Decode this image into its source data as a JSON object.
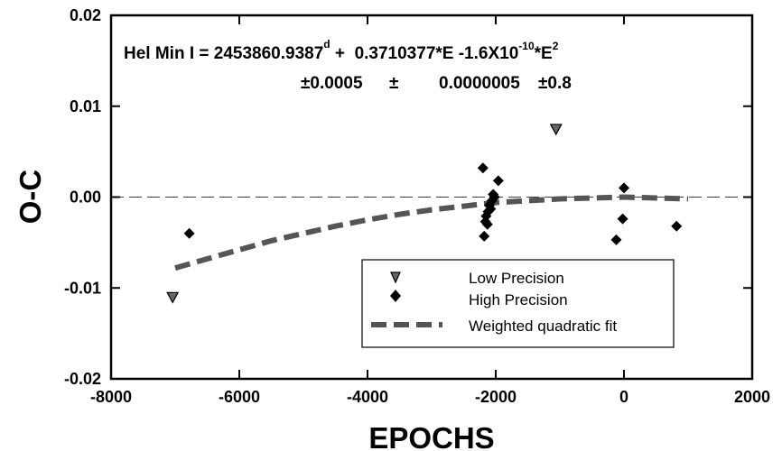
{
  "chart_data": {
    "type": "scatter",
    "xlabel": "EPOCHS",
    "ylabel": "O-C",
    "xlim": [
      -8000,
      2000
    ],
    "ylim": [
      -0.02,
      0.02
    ],
    "x_ticks": [
      -8000,
      -6000,
      -4000,
      -2000,
      0,
      2000
    ],
    "x_tick_labels": [
      "-8000",
      "-6000",
      "-4000",
      "-2000",
      "0",
      "2000"
    ],
    "y_ticks": [
      -0.02,
      -0.01,
      0.0,
      0.01,
      0.02
    ],
    "y_tick_labels": [
      "-0.02",
      "-0.01",
      "0.00",
      "0.01",
      "0.02"
    ],
    "grid": false,
    "reference_line_y": 0.0,
    "equation": {
      "line1": {
        "prefix": "Hel Min I = 2453860.9387",
        "sup1": "d",
        "middle1": " +  0.3710377*E -1.6X10",
        "sup2": "-10",
        "middle2": "*E",
        "sup3": "2"
      },
      "line2": {
        "e1": "±0.0005",
        "pm": "±",
        "e2": "0.0000005",
        "e3": "±0.8"
      }
    },
    "legend_position": "bottom-right",
    "series": [
      {
        "name": "Low Precision",
        "marker": "triangle-down",
        "color": "#555555",
        "x": [
          -7040,
          -1060
        ],
        "y": [
          -0.011,
          0.0075
        ]
      },
      {
        "name": "High Precision",
        "marker": "diamond",
        "color": "#000000",
        "x": [
          -6780,
          -2200,
          -2180,
          -2160,
          -2150,
          -2130,
          -2120,
          -2100,
          -2080,
          -2060,
          -2040,
          -2020,
          -1960,
          -120,
          -20,
          0,
          820
        ],
        "y": [
          -0.004,
          0.0032,
          -0.0043,
          -0.0027,
          -0.0021,
          -0.003,
          -0.0016,
          -0.0009,
          -0.0013,
          -0.0004,
          0.0003,
          0.0,
          0.0018,
          -0.0047,
          -0.0024,
          0.001,
          -0.0032
        ]
      },
      {
        "name": "Weighted quadratic fit",
        "type": "line",
        "style": "dashed",
        "color": "#555555",
        "x": [
          -7000,
          -6500,
          -6000,
          -5500,
          -5000,
          -4500,
          -4000,
          -3500,
          -3000,
          -2500,
          -2000,
          -1500,
          -1000,
          -500,
          0,
          500,
          1000
        ],
        "y": [
          -0.0078,
          -0.0068,
          -0.0058,
          -0.0048,
          -0.004,
          -0.0032,
          -0.0025,
          -0.0019,
          -0.0014,
          -0.001,
          -0.0006,
          -0.0004,
          -0.0002,
          -0.0001,
          0.0,
          -0.0001,
          -0.0002
        ]
      }
    ]
  }
}
